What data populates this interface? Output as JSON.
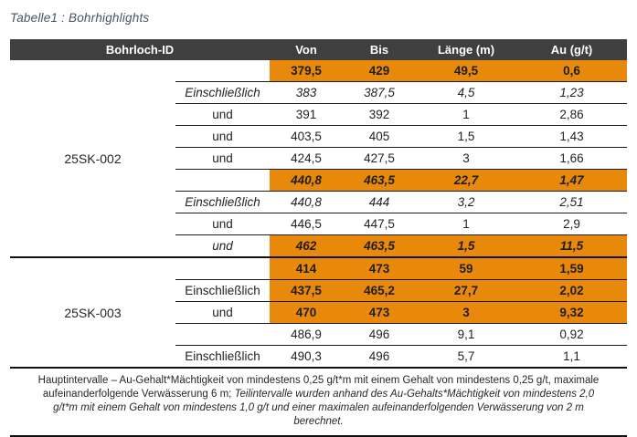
{
  "title": "Tabelle1 : Bohrhighlights",
  "colors": {
    "highlight_orange": "#E8890C",
    "header_background": "#3F3F3F",
    "header_text": "#FFFFFF",
    "title_text": "#44546A",
    "border": "#1A1A1A"
  },
  "table": {
    "headers": {
      "id": "Bohrloch-ID",
      "von": "Von",
      "bis": "Bis",
      "laenge": "Länge (m)",
      "au": "Au (g/t)"
    },
    "groups": [
      {
        "id": "25SK-002",
        "rows": [
          {
            "label": "",
            "von": "379,5",
            "bis": "429",
            "laenge": "49,5",
            "au": "0,6",
            "highlight": true,
            "italic": false
          },
          {
            "label": "Einschließlich",
            "von": "383",
            "bis": "387,5",
            "laenge": "4,5",
            "au": "1,23",
            "highlight": false,
            "italic": true
          },
          {
            "label": "und",
            "von": "391",
            "bis": "392",
            "laenge": "1",
            "au": "2,86",
            "highlight": false,
            "italic": false
          },
          {
            "label": "und",
            "von": "403,5",
            "bis": "405",
            "laenge": "1,5",
            "au": "1,43",
            "highlight": false,
            "italic": false
          },
          {
            "label": "und",
            "von": "424,5",
            "bis": "427,5",
            "laenge": "3",
            "au": "1,66",
            "highlight": false,
            "italic": false
          },
          {
            "label": "",
            "von": "440,8",
            "bis": "463,5",
            "laenge": "22,7",
            "au": "1,47",
            "highlight": true,
            "italic": true
          },
          {
            "label": "Einschließlich",
            "von": "440,8",
            "bis": "444",
            "laenge": "3,2",
            "au": "2,51",
            "highlight": false,
            "italic": true
          },
          {
            "label": "und",
            "von": "446,5",
            "bis": "447,5",
            "laenge": "1",
            "au": "2,9",
            "highlight": false,
            "italic": false
          },
          {
            "label": "und",
            "von": "462",
            "bis": "463,5",
            "laenge": "1,5",
            "au": "11,5",
            "highlight": true,
            "italic": true
          }
        ]
      },
      {
        "id": "25SK-003",
        "rows": [
          {
            "label": "",
            "von": "414",
            "bis": "473",
            "laenge": "59",
            "au": "1,59",
            "highlight": true,
            "italic": false
          },
          {
            "label": "Einschließlich",
            "von": "437,5",
            "bis": "465,2",
            "laenge": "27,7",
            "au": "2,02",
            "highlight": true,
            "italic": false
          },
          {
            "label": "und",
            "von": "470",
            "bis": "473",
            "laenge": "3",
            "au": "9,32",
            "highlight": true,
            "italic": false
          },
          {
            "label": "",
            "von": "486,9",
            "bis": "496",
            "laenge": "9,1",
            "au": "0,92",
            "highlight": false,
            "italic": false
          },
          {
            "label": "Einschließlich",
            "von": "490,3",
            "bis": "496",
            "laenge": "5,7",
            "au": "1,1",
            "highlight": false,
            "italic": false
          }
        ]
      }
    ]
  },
  "footnote": {
    "normal": "Hauptintervalle – Au-Gehalt*Mächtigkeit von mindestens 0,25 g/t*m mit einem Gehalt von mindestens 0,25 g/t, maximale aufeinanderfolgende Verwässerung 6 m;",
    "italic": "Teilintervalle wurden anhand des Au-Gehalts*Mächtigkeit von mindestens 2,0 g/t*m mit einem Gehalt von mindestens 1,0 g/t und einer maximalen aufeinanderfolgenden Verwässerung von 2 m berechnet."
  }
}
